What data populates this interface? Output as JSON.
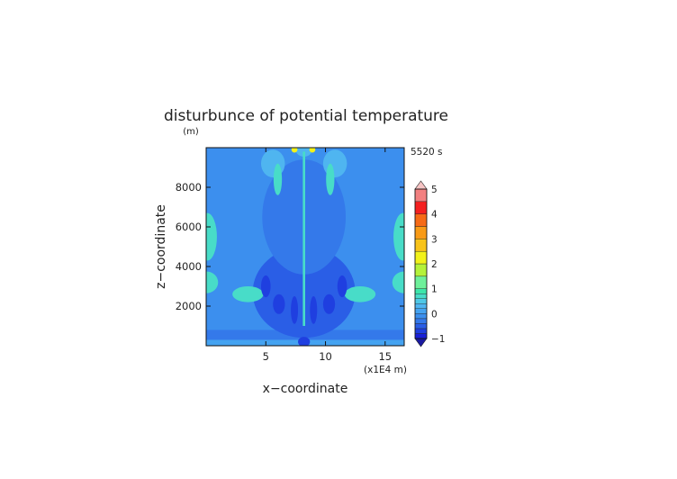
{
  "chart_data": {
    "type": "heatmap",
    "title": "disturbunce of potential temperature",
    "y_unit": "(m)",
    "time_label": "5520 s",
    "xlabel": "x−coordinate",
    "ylabel": "z−coordinate",
    "x_unit": "(x1E4 m)",
    "xlim": [
      0,
      16.6
    ],
    "ylim": [
      0,
      10000
    ],
    "x_ticks": [
      {
        "value": 5,
        "label": "5"
      },
      {
        "value": 10,
        "label": "10"
      },
      {
        "value": 15,
        "label": "15"
      }
    ],
    "y_ticks": [
      {
        "value": 2000,
        "label": "2000"
      },
      {
        "value": 4000,
        "label": "4000"
      },
      {
        "value": 6000,
        "label": "6000"
      },
      {
        "value": 8000,
        "label": "8000"
      }
    ],
    "colorbar": {
      "range": [
        -1,
        5
      ],
      "levels": [
        {
          "lo": -1.0,
          "hi": -0.8,
          "color": "#1a20d8"
        },
        {
          "lo": -0.8,
          "hi": -0.6,
          "color": "#1f3fe0"
        },
        {
          "lo": -0.6,
          "hi": -0.4,
          "color": "#2a5ee6"
        },
        {
          "lo": -0.4,
          "hi": -0.2,
          "color": "#3479ea"
        },
        {
          "lo": -0.2,
          "hi": 0.0,
          "color": "#3c8fee"
        },
        {
          "lo": 0.0,
          "hi": 0.2,
          "color": "#45a3f1"
        },
        {
          "lo": 0.2,
          "hi": 0.4,
          "color": "#4fb5f0"
        },
        {
          "lo": 0.4,
          "hi": 0.6,
          "color": "#4fc8e6"
        },
        {
          "lo": 0.6,
          "hi": 0.8,
          "color": "#48dcc8"
        },
        {
          "lo": 0.8,
          "hi": 1.0,
          "color": "#3de6aa"
        },
        {
          "lo": 1.0,
          "hi": 1.5,
          "color": "#6ef09a"
        },
        {
          "lo": 1.5,
          "hi": 2.0,
          "color": "#b4f23a"
        },
        {
          "lo": 2.0,
          "hi": 2.5,
          "color": "#f2f21a"
        },
        {
          "lo": 2.5,
          "hi": 3.0,
          "color": "#f8c31a"
        },
        {
          "lo": 3.0,
          "hi": 3.5,
          "color": "#f89a16"
        },
        {
          "lo": 3.5,
          "hi": 4.0,
          "color": "#f66a16"
        },
        {
          "lo": 4.0,
          "hi": 4.5,
          "color": "#f42020"
        },
        {
          "lo": 4.5,
          "hi": 5.0,
          "color": "#f28080"
        }
      ],
      "under_color": "#1a1aa0",
      "over_color": "#f6c4c4",
      "tick_labels": [
        {
          "value": -1,
          "label": "−1"
        },
        {
          "value": 0,
          "label": "0"
        },
        {
          "value": 1,
          "label": "1"
        },
        {
          "value": 2,
          "label": "2"
        },
        {
          "value": 3,
          "label": "3"
        },
        {
          "value": 4,
          "label": "4"
        },
        {
          "value": 5,
          "label": "5"
        }
      ]
    },
    "background_value": -0.15,
    "field_regions": [
      {
        "kind": "band",
        "value": 0.1,
        "x": [
          0,
          16.6
        ],
        "z": [
          0,
          300
        ]
      },
      {
        "kind": "band",
        "value": -0.3,
        "x": [
          0,
          16.6
        ],
        "z": [
          300,
          800
        ]
      },
      {
        "kind": "ellipse",
        "value": -0.45,
        "cx": 8.2,
        "cz": 2700,
        "rx": 4.3,
        "rz": 2300
      },
      {
        "kind": "ellipse",
        "value": -0.35,
        "cx": 8.2,
        "cz": 6500,
        "rx": 3.5,
        "rz": 2900
      },
      {
        "kind": "ellipse",
        "value": 0.6,
        "cx": 0.0,
        "cz": 3200,
        "rx": 1.0,
        "rz": 550
      },
      {
        "kind": "ellipse",
        "value": 0.6,
        "cx": 16.6,
        "cz": 3200,
        "rx": 1.0,
        "rz": 550
      },
      {
        "kind": "ellipse",
        "value": 0.6,
        "cx": 0.1,
        "cz": 5500,
        "rx": 0.8,
        "rz": 1200
      },
      {
        "kind": "ellipse",
        "value": 0.6,
        "cx": 16.5,
        "cz": 5500,
        "rx": 0.8,
        "rz": 1200
      },
      {
        "kind": "ellipse",
        "value": 0.6,
        "cx": 3.5,
        "cz": 2600,
        "rx": 1.3,
        "rz": 400
      },
      {
        "kind": "ellipse",
        "value": 0.6,
        "cx": 12.9,
        "cz": 2600,
        "rx": 1.3,
        "rz": 400
      },
      {
        "kind": "ellipse",
        "value": 0.3,
        "cx": 5.6,
        "cz": 9200,
        "rx": 1.0,
        "rz": 700
      },
      {
        "kind": "ellipse",
        "value": 0.3,
        "cx": 10.8,
        "cz": 9200,
        "rx": 1.0,
        "rz": 700
      },
      {
        "kind": "ellipse",
        "value": 0.6,
        "cx": 6.0,
        "cz": 8400,
        "rx": 0.35,
        "rz": 800
      },
      {
        "kind": "ellipse",
        "value": 0.6,
        "cx": 10.4,
        "cz": 8400,
        "rx": 0.35,
        "rz": 800
      },
      {
        "kind": "ellipse",
        "value": -0.8,
        "cx": 5.0,
        "cz": 3000,
        "rx": 0.4,
        "rz": 550
      },
      {
        "kind": "ellipse",
        "value": -0.8,
        "cx": 11.4,
        "cz": 3000,
        "rx": 0.4,
        "rz": 550
      },
      {
        "kind": "ellipse",
        "value": -0.8,
        "cx": 6.1,
        "cz": 2100,
        "rx": 0.5,
        "rz": 500
      },
      {
        "kind": "ellipse",
        "value": -0.8,
        "cx": 10.3,
        "cz": 2100,
        "rx": 0.5,
        "rz": 500
      },
      {
        "kind": "ellipse",
        "value": -0.8,
        "cx": 7.4,
        "cz": 1800,
        "rx": 0.3,
        "rz": 700
      },
      {
        "kind": "ellipse",
        "value": -0.8,
        "cx": 9.0,
        "cz": 1800,
        "rx": 0.3,
        "rz": 700
      },
      {
        "kind": "ellipse",
        "value": -0.7,
        "cx": 8.2,
        "cz": 200,
        "rx": 0.5,
        "rz": 250
      },
      {
        "kind": "ellipse",
        "value": 0.3,
        "cx": 8.2,
        "cz": 9900,
        "rx": 0.7,
        "rz": 350
      },
      {
        "kind": "ellipse",
        "value": 2.2,
        "cx": 7.4,
        "cz": 9900,
        "rx": 0.25,
        "rz": 150
      },
      {
        "kind": "ellipse",
        "value": 2.2,
        "cx": 8.9,
        "cz": 9900,
        "rx": 0.25,
        "rz": 150
      },
      {
        "kind": "band",
        "value": 0.7,
        "x": [
          8.1,
          8.3
        ],
        "z": [
          1000,
          9800
        ]
      }
    ]
  }
}
